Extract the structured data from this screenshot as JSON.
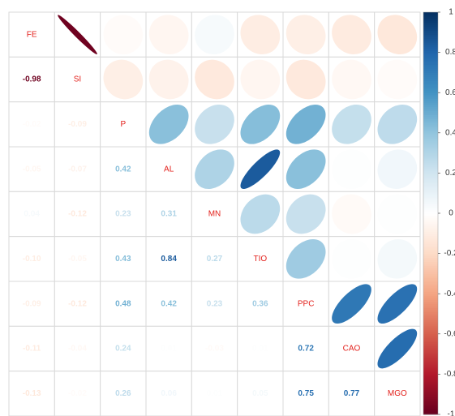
{
  "chart_data": {
    "type": "corrplot",
    "variables": [
      "FE",
      "SI",
      "P",
      "AL",
      "MN",
      "TIO",
      "PPC",
      "CAO",
      "MGO"
    ],
    "values": [
      [
        1,
        -0.98,
        -0.02,
        -0.05,
        0.04,
        -0.1,
        -0.09,
        -0.11,
        -0.13
      ],
      [
        -0.98,
        1,
        -0.09,
        -0.07,
        -0.12,
        -0.05,
        -0.12,
        -0.04,
        -0.02
      ],
      [
        -0.02,
        -0.09,
        1,
        0.42,
        0.23,
        0.43,
        0.48,
        0.24,
        0.26
      ],
      [
        -0.05,
        -0.07,
        0.42,
        1,
        0.31,
        0.84,
        0.42,
        0.01,
        0.06
      ],
      [
        0.04,
        -0.12,
        0.23,
        0.31,
        1,
        0.27,
        0.23,
        -0.03,
        0.01
      ],
      [
        -0.1,
        -0.05,
        0.43,
        0.84,
        0.27,
        1,
        0.36,
        0.01,
        0.05
      ],
      [
        -0.09,
        -0.12,
        0.48,
        0.42,
        0.23,
        0.36,
        1,
        0.72,
        0.75
      ],
      [
        -0.11,
        -0.04,
        0.24,
        0.01,
        -0.03,
        0.01,
        0.72,
        1,
        0.77
      ],
      [
        -0.13,
        -0.02,
        0.26,
        0.06,
        0.01,
        0.05,
        0.75,
        0.77,
        1
      ]
    ],
    "value_labels": [
      [
        null,
        null,
        null,
        null,
        null,
        null,
        null,
        null,
        null
      ],
      [
        "-0.98",
        null,
        null,
        null,
        null,
        null,
        null,
        null,
        null
      ],
      [
        "-0.02",
        "-0.09",
        null,
        null,
        null,
        null,
        null,
        null,
        null
      ],
      [
        "-0.05",
        "-0.07",
        "0.42",
        null,
        null,
        null,
        null,
        null,
        null
      ],
      [
        "0.04",
        "-0.12",
        "0.23",
        "0.31",
        null,
        null,
        null,
        null,
        null
      ],
      [
        "-0.10",
        "-0.05",
        "0.43",
        "0.84",
        "0.27",
        null,
        null,
        null,
        null
      ],
      [
        "-0.09",
        "-0.12",
        "0.48",
        "0.42",
        "0.23",
        "0.36",
        null,
        null,
        null
      ],
      [
        "-0.11",
        "-0.04",
        "0.24",
        "0.01",
        "-0.03",
        "0.01",
        "0.72",
        null,
        null
      ],
      [
        "-0.13",
        "-0.02",
        "0.26",
        "0.06",
        "0.01",
        "0.05",
        "0.75",
        "0.77",
        null
      ]
    ],
    "colors": [
      "#67001F",
      "#B2182B",
      "#D6604D",
      "#F4A582",
      "#FDDBC7",
      "#FFFFFF",
      "#D1E5F0",
      "#92C5DE",
      "#4393C3",
      "#2166AC",
      "#053061"
    ],
    "label_color": "#E3211C",
    "colorbar_lim": [
      -1,
      1
    ],
    "colorbar_ticks": [
      1,
      0.8,
      0.6,
      0.4,
      0.2,
      0,
      -0.2,
      -0.4,
      -0.6,
      -0.8,
      -1
    ]
  }
}
